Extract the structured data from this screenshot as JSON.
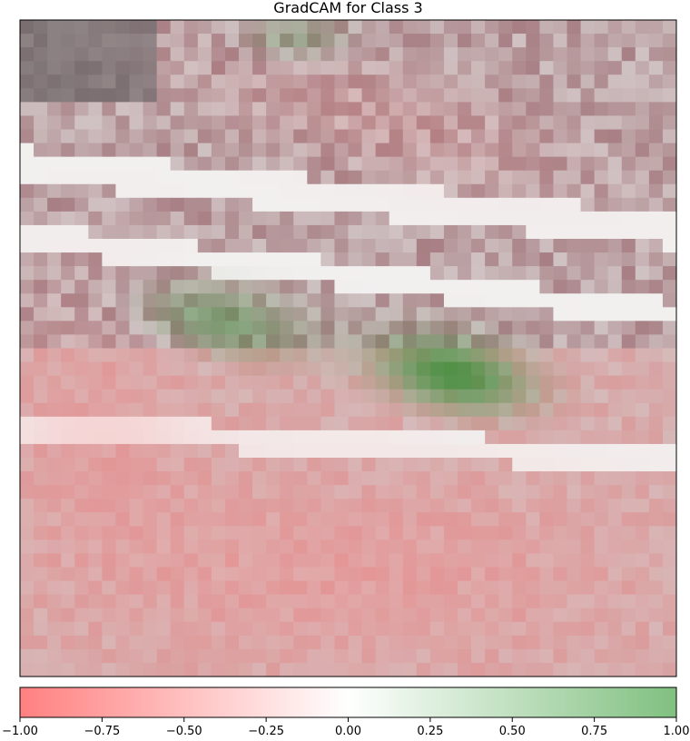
{
  "chart_data": {
    "type": "heatmap",
    "title": "GradCAM for Class 3",
    "xlabel": "",
    "ylabel": "",
    "axes_ticks_visible": false,
    "grid": false,
    "colorbar": {
      "orientation": "horizontal",
      "placement": "bottom",
      "vmin": -1.0,
      "vmax": 1.0,
      "colormap_stops": [
        {
          "value": -1.0,
          "color": "#ff8080"
        },
        {
          "value": 0.0,
          "color": "#ffffff"
        },
        {
          "value": 1.0,
          "color": "#80c080"
        }
      ],
      "tick_values": [
        -1.0,
        -0.75,
        -0.5,
        -0.25,
        0.0,
        0.25,
        0.5,
        0.75,
        1.0
      ],
      "tick_labels": [
        "−1.00",
        "−0.75",
        "−0.50",
        "−0.25",
        "0.00",
        "0.25",
        "0.50",
        "0.75",
        "1.00"
      ]
    },
    "underlay_palette": {
      "shadow": "#7a6e70",
      "soil": "#c9b9ba",
      "roof": "#a77f84",
      "bright": "#f2efef",
      "field": "#d99e9e"
    },
    "overlay_colors": {
      "negative": "#ff8080",
      "positive": "#2e8b2e"
    },
    "heat_grid_cols": 48,
    "heat_grid_rows": 48,
    "heat_regions": [
      {
        "id": "green-blob-left",
        "cx": 0.3,
        "cy": 0.46,
        "rx": 0.16,
        "ry": 0.065,
        "value": 0.55,
        "angle": 10
      },
      {
        "id": "green-blob-right",
        "cx": 0.66,
        "cy": 0.54,
        "rx": 0.14,
        "ry": 0.065,
        "value": 0.9,
        "angle": 12
      },
      {
        "id": "green-blob-top",
        "cx": 0.42,
        "cy": 0.03,
        "rx": 0.1,
        "ry": 0.04,
        "value": 0.35,
        "angle": 0
      },
      {
        "id": "red-field-bottom",
        "cx": 0.5,
        "cy": 0.84,
        "rx": 0.55,
        "ry": 0.2,
        "value": -0.45,
        "angle": 0
      },
      {
        "id": "red-field-left",
        "cx": 0.12,
        "cy": 0.62,
        "rx": 0.2,
        "ry": 0.25,
        "value": -0.35,
        "angle": 0
      },
      {
        "id": "red-roofs-top",
        "cx": 0.55,
        "cy": 0.15,
        "rx": 0.35,
        "ry": 0.1,
        "value": -0.25,
        "angle": 15
      }
    ]
  }
}
